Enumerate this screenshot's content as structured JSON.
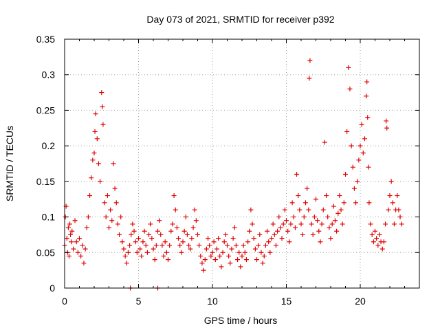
{
  "chart_data": {
    "type": "scatter",
    "title": "Day 073 of 2021, SRMTID for receiver p392",
    "xlabel": "GPS time / hours",
    "ylabel": "SRMTID / TECUs",
    "xlim": [
      0,
      24
    ],
    "ylim": [
      0,
      0.35
    ],
    "xticks": [
      0,
      5,
      10,
      15,
      20
    ],
    "xtick_labels": [
      "0",
      "5",
      "10",
      "15",
      "20"
    ],
    "yticks": [
      0,
      0.05,
      0.1,
      0.15,
      0.2,
      0.25,
      0.3,
      0.35
    ],
    "ytick_labels": [
      "0",
      "0.05",
      "0.1",
      "0.15",
      "0.2",
      "0.25",
      "0.3",
      "0.35"
    ],
    "grid": true,
    "marker": "plus",
    "color": "#e00000",
    "series": [
      {
        "name": "SRMTID",
        "points": [
          [
            0.0,
            0.06
          ],
          [
            0.05,
            0.1
          ],
          [
            0.1,
            0.115
          ],
          [
            0.15,
            0.07
          ],
          [
            0.2,
            0.05
          ],
          [
            0.25,
            0.085
          ],
          [
            0.3,
            0.045
          ],
          [
            0.35,
            0.09
          ],
          [
            0.4,
            0.075
          ],
          [
            0.45,
            0.065
          ],
          [
            0.5,
            0.08
          ],
          [
            0.6,
            0.055
          ],
          [
            0.7,
            0.095
          ],
          [
            0.8,
            0.065
          ],
          [
            0.9,
            0.05
          ],
          [
            1.0,
            0.07
          ],
          [
            1.1,
            0.045
          ],
          [
            1.2,
            0.06
          ],
          [
            1.3,
            0.035
          ],
          [
            1.4,
            0.055
          ],
          [
            1.5,
            0.085
          ],
          [
            1.6,
            0.1
          ],
          [
            1.7,
            0.13
          ],
          [
            1.8,
            0.155
          ],
          [
            1.9,
            0.18
          ],
          [
            2.0,
            0.19
          ],
          [
            2.05,
            0.22
          ],
          [
            2.1,
            0.245
          ],
          [
            2.2,
            0.21
          ],
          [
            2.3,
            0.175
          ],
          [
            2.4,
            0.15
          ],
          [
            2.5,
            0.275
          ],
          [
            2.55,
            0.255
          ],
          [
            2.6,
            0.23
          ],
          [
            2.7,
            0.12
          ],
          [
            2.8,
            0.1
          ],
          [
            2.9,
            0.13
          ],
          [
            3.0,
            0.085
          ],
          [
            3.1,
            0.11
          ],
          [
            3.2,
            0.095
          ],
          [
            3.3,
            0.175
          ],
          [
            3.4,
            0.14
          ],
          [
            3.5,
            0.12
          ],
          [
            3.6,
            0.09
          ],
          [
            3.7,
            0.075
          ],
          [
            3.8,
            0.1
          ],
          [
            3.9,
            0.065
          ],
          [
            4.0,
            0.055
          ],
          [
            4.1,
            0.045
          ],
          [
            4.2,
            0.035
          ],
          [
            4.3,
            0.05
          ],
          [
            4.4,
            0.06
          ],
          [
            4.5,
            0.075
          ],
          [
            4.6,
            0.09
          ],
          [
            4.7,
            0.08
          ],
          [
            4.8,
            0.065
          ],
          [
            4.9,
            0.05
          ],
          [
            5.0,
            0.07
          ],
          [
            5.1,
            0.055
          ],
          [
            5.2,
            0.045
          ],
          [
            5.3,
            0.065
          ],
          [
            5.4,
            0.08
          ],
          [
            5.5,
            0.06
          ],
          [
            5.6,
            0.05
          ],
          [
            5.7,
            0.075
          ],
          [
            5.8,
            0.09
          ],
          [
            5.9,
            0.07
          ],
          [
            6.0,
            0.055
          ],
          [
            6.1,
            0.04
          ],
          [
            6.2,
            0.06
          ],
          [
            6.3,
            0.08
          ],
          [
            6.4,
            0.095
          ],
          [
            6.5,
            0.075
          ],
          [
            6.6,
            0.06
          ],
          [
            6.7,
            0.045
          ],
          [
            6.8,
            0.065
          ],
          [
            6.9,
            0.05
          ],
          [
            7.0,
            0.04
          ],
          [
            7.1,
            0.06
          ],
          [
            7.2,
            0.08
          ],
          [
            7.3,
            0.09
          ],
          [
            7.4,
            0.13
          ],
          [
            7.5,
            0.11
          ],
          [
            7.6,
            0.085
          ],
          [
            7.7,
            0.07
          ],
          [
            7.8,
            0.06
          ],
          [
            7.9,
            0.05
          ],
          [
            8.0,
            0.065
          ],
          [
            8.1,
            0.08
          ],
          [
            8.2,
            0.1
          ],
          [
            8.3,
            0.075
          ],
          [
            8.4,
            0.06
          ],
          [
            8.5,
            0.055
          ],
          [
            8.6,
            0.07
          ],
          [
            8.7,
            0.085
          ],
          [
            8.8,
            0.11
          ],
          [
            8.9,
            0.095
          ],
          [
            9.0,
            0.075
          ],
          [
            9.1,
            0.06
          ],
          [
            9.2,
            0.045
          ],
          [
            9.3,
            0.035
          ],
          [
            9.4,
            0.025
          ],
          [
            9.5,
            0.04
          ],
          [
            9.6,
            0.055
          ],
          [
            9.7,
            0.07
          ],
          [
            9.8,
            0.06
          ],
          [
            9.9,
            0.045
          ],
          [
            10.0,
            0.05
          ],
          [
            10.1,
            0.065
          ],
          [
            10.2,
            0.04
          ],
          [
            10.3,
            0.055
          ],
          [
            10.4,
            0.07
          ],
          [
            10.5,
            0.045
          ],
          [
            10.6,
            0.03
          ],
          [
            10.7,
            0.05
          ],
          [
            10.8,
            0.065
          ],
          [
            10.9,
            0.075
          ],
          [
            11.0,
            0.06
          ],
          [
            11.1,
            0.045
          ],
          [
            11.2,
            0.035
          ],
          [
            11.3,
            0.055
          ],
          [
            11.4,
            0.07
          ],
          [
            11.5,
            0.085
          ],
          [
            11.6,
            0.06
          ],
          [
            11.7,
            0.04
          ],
          [
            11.8,
            0.05
          ],
          [
            11.9,
            0.03
          ],
          [
            12.0,
            0.045
          ],
          [
            12.1,
            0.06
          ],
          [
            12.2,
            0.05
          ],
          [
            12.3,
            0.04
          ],
          [
            12.4,
            0.065
          ],
          [
            12.5,
            0.08
          ],
          [
            12.6,
            0.11
          ],
          [
            12.7,
            0.09
          ],
          [
            12.8,
            0.07
          ],
          [
            12.9,
            0.055
          ],
          [
            13.0,
            0.04
          ],
          [
            13.1,
            0.06
          ],
          [
            13.2,
            0.075
          ],
          [
            13.3,
            0.05
          ],
          [
            13.4,
            0.035
          ],
          [
            13.5,
            0.045
          ],
          [
            13.6,
            0.06
          ],
          [
            13.7,
            0.08
          ],
          [
            13.8,
            0.065
          ],
          [
            13.9,
            0.05
          ],
          [
            14.0,
            0.07
          ],
          [
            14.1,
            0.09
          ],
          [
            14.2,
            0.075
          ],
          [
            14.3,
            0.06
          ],
          [
            14.4,
            0.08
          ],
          [
            14.5,
            0.1
          ],
          [
            14.6,
            0.085
          ],
          [
            14.7,
            0.07
          ],
          [
            14.8,
            0.09
          ],
          [
            14.9,
            0.11
          ],
          [
            15.0,
            0.095
          ],
          [
            15.1,
            0.08
          ],
          [
            15.2,
            0.065
          ],
          [
            15.3,
            0.09
          ],
          [
            15.4,
            0.12
          ],
          [
            15.5,
            0.1
          ],
          [
            15.6,
            0.085
          ],
          [
            15.7,
            0.16
          ],
          [
            15.8,
            0.13
          ],
          [
            15.9,
            0.11
          ],
          [
            16.0,
            0.09
          ],
          [
            16.1,
            0.075
          ],
          [
            16.2,
            0.1
          ],
          [
            16.3,
            0.12
          ],
          [
            16.4,
            0.14
          ],
          [
            16.5,
            0.11
          ],
          [
            16.55,
            0.295
          ],
          [
            16.6,
            0.32
          ],
          [
            16.7,
            0.09
          ],
          [
            16.8,
            0.075
          ],
          [
            16.9,
            0.1
          ],
          [
            17.0,
            0.125
          ],
          [
            17.1,
            0.095
          ],
          [
            17.2,
            0.08
          ],
          [
            17.3,
            0.065
          ],
          [
            17.4,
            0.09
          ],
          [
            17.5,
            0.11
          ],
          [
            17.6,
            0.205
          ],
          [
            17.7,
            0.13
          ],
          [
            17.8,
            0.1
          ],
          [
            17.9,
            0.085
          ],
          [
            18.0,
            0.07
          ],
          [
            18.1,
            0.09
          ],
          [
            18.2,
            0.115
          ],
          [
            18.3,
            0.095
          ],
          [
            18.4,
            0.08
          ],
          [
            18.5,
            0.105
          ],
          [
            18.6,
            0.13
          ],
          [
            18.7,
            0.11
          ],
          [
            18.8,
            0.09
          ],
          [
            18.9,
            0.12
          ],
          [
            19.0,
            0.16
          ],
          [
            19.1,
            0.22
          ],
          [
            19.2,
            0.31
          ],
          [
            19.3,
            0.28
          ],
          [
            19.4,
            0.2
          ],
          [
            19.5,
            0.17
          ],
          [
            19.6,
            0.14
          ],
          [
            19.7,
            0.12
          ],
          [
            19.8,
            0.15
          ],
          [
            19.9,
            0.18
          ],
          [
            20.0,
            0.2
          ],
          [
            20.1,
            0.23
          ],
          [
            20.2,
            0.19
          ],
          [
            20.3,
            0.21
          ],
          [
            20.4,
            0.27
          ],
          [
            20.45,
            0.29
          ],
          [
            20.5,
            0.24
          ],
          [
            20.55,
            0.17
          ],
          [
            20.6,
            0.12
          ],
          [
            20.7,
            0.09
          ],
          [
            20.8,
            0.075
          ],
          [
            20.9,
            0.065
          ],
          [
            21.0,
            0.08
          ],
          [
            21.1,
            0.07
          ],
          [
            21.2,
            0.06
          ],
          [
            21.3,
            0.075
          ],
          [
            21.4,
            0.065
          ],
          [
            21.5,
            0.055
          ],
          [
            21.6,
            0.065
          ],
          [
            21.7,
            0.09
          ],
          [
            21.75,
            0.235
          ],
          [
            21.8,
            0.225
          ],
          [
            21.9,
            0.11
          ],
          [
            22.0,
            0.13
          ],
          [
            22.1,
            0.15
          ],
          [
            22.2,
            0.12
          ],
          [
            22.3,
            0.09
          ],
          [
            22.4,
            0.11
          ],
          [
            22.5,
            0.13
          ],
          [
            22.6,
            0.11
          ],
          [
            22.7,
            0.1
          ],
          [
            22.8,
            0.09
          ],
          [
            4.45,
            0.0
          ],
          [
            6.3,
            0.0
          ]
        ]
      }
    ]
  }
}
